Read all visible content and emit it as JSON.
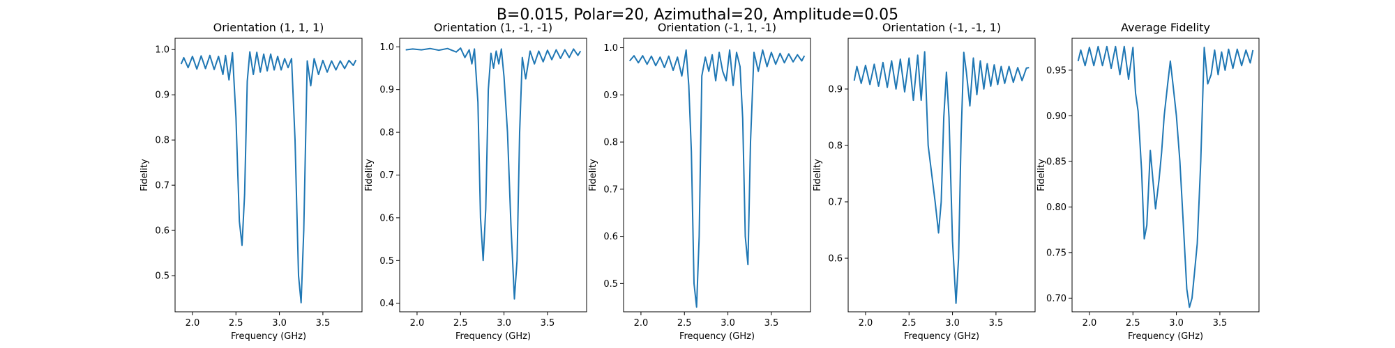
{
  "suptitle": "B=0.015, Polar=20, Azimuthal=20, Amplitude=0.05",
  "colors": {
    "line": "#1f77b4",
    "frame": "#000000",
    "background": "#ffffff"
  },
  "chart_data": [
    {
      "type": "line",
      "title": "Orientation (1, 1, 1)",
      "xlabel": "Frequency (GHz)",
      "ylabel": "Fidelity",
      "xlim": [
        1.8,
        3.95
      ],
      "ylim": [
        0.42,
        1.025
      ],
      "xticks": [
        "2.0",
        "2.5",
        "3.0",
        "3.5"
      ],
      "yticks": [
        "0.5",
        "0.6",
        "0.7",
        "0.8",
        "0.9",
        "1.0"
      ],
      "grid": false,
      "series": [
        {
          "x": [
            1.87,
            1.9,
            1.95,
            2.0,
            2.05,
            2.1,
            2.15,
            2.2,
            2.25,
            2.3,
            2.35,
            2.38,
            2.42,
            2.46,
            2.5,
            2.54,
            2.57,
            2.6,
            2.63,
            2.66,
            2.7,
            2.74,
            2.78,
            2.82,
            2.86,
            2.9,
            2.94,
            2.98,
            3.02,
            3.06,
            3.1,
            3.14,
            3.18,
            3.22,
            3.25,
            3.28,
            3.32,
            3.36,
            3.4,
            3.45,
            3.5,
            3.55,
            3.6,
            3.65,
            3.7,
            3.75,
            3.8,
            3.85,
            3.88
          ],
          "y": [
            0.968,
            0.982,
            0.96,
            0.985,
            0.957,
            0.986,
            0.958,
            0.987,
            0.956,
            0.985,
            0.945,
            0.987,
            0.933,
            0.993,
            0.85,
            0.62,
            0.567,
            0.68,
            0.93,
            0.995,
            0.945,
            0.994,
            0.95,
            0.99,
            0.953,
            0.99,
            0.955,
            0.985,
            0.955,
            0.98,
            0.96,
            0.98,
            0.8,
            0.5,
            0.44,
            0.6,
            0.975,
            0.92,
            0.98,
            0.945,
            0.976,
            0.95,
            0.975,
            0.955,
            0.975,
            0.958,
            0.976,
            0.965,
            0.977
          ]
        }
      ]
    },
    {
      "type": "line",
      "title": "Orientation (1, -1, -1)",
      "xlabel": "Frequency (GHz)",
      "ylabel": "Fidelity",
      "xlim": [
        1.8,
        3.95
      ],
      "ylim": [
        0.38,
        1.02
      ],
      "xticks": [
        "2.0",
        "2.5",
        "3.0",
        "3.5"
      ],
      "yticks": [
        "0.4",
        "0.5",
        "0.6",
        "0.7",
        "0.8",
        "0.9",
        "1.0"
      ],
      "grid": false,
      "series": [
        {
          "x": [
            1.87,
            1.95,
            2.05,
            2.15,
            2.25,
            2.35,
            2.45,
            2.5,
            2.55,
            2.6,
            2.63,
            2.66,
            2.7,
            2.73,
            2.76,
            2.79,
            2.82,
            2.85,
            2.88,
            2.91,
            2.94,
            2.97,
            3.0,
            3.04,
            3.08,
            3.12,
            3.15,
            3.18,
            3.21,
            3.25,
            3.3,
            3.35,
            3.4,
            3.45,
            3.5,
            3.55,
            3.6,
            3.65,
            3.7,
            3.75,
            3.8,
            3.85,
            3.88
          ],
          "y": [
            0.993,
            0.995,
            0.993,
            0.996,
            0.992,
            0.996,
            0.988,
            0.997,
            0.975,
            0.993,
            0.96,
            0.995,
            0.87,
            0.6,
            0.5,
            0.62,
            0.9,
            0.985,
            0.95,
            0.99,
            0.96,
            0.995,
            0.93,
            0.8,
            0.58,
            0.41,
            0.5,
            0.8,
            0.975,
            0.925,
            0.99,
            0.96,
            0.99,
            0.965,
            0.992,
            0.97,
            0.993,
            0.973,
            0.993,
            0.975,
            0.995,
            0.98,
            0.99
          ]
        }
      ]
    },
    {
      "type": "line",
      "title": "Orientation (-1, 1, -1)",
      "xlabel": "Frequency (GHz)",
      "ylabel": "Fidelity",
      "xlim": [
        1.8,
        3.95
      ],
      "ylim": [
        0.44,
        1.02
      ],
      "xticks": [
        "2.0",
        "2.5",
        "3.0",
        "3.5"
      ],
      "yticks": [
        "0.5",
        "0.6",
        "0.7",
        "0.8",
        "0.9",
        "1.0"
      ],
      "grid": false,
      "series": [
        {
          "x": [
            1.87,
            1.92,
            1.97,
            2.02,
            2.07,
            2.12,
            2.17,
            2.22,
            2.27,
            2.32,
            2.37,
            2.42,
            2.47,
            2.52,
            2.55,
            2.58,
            2.61,
            2.64,
            2.67,
            2.7,
            2.74,
            2.78,
            2.82,
            2.86,
            2.9,
            2.94,
            2.98,
            3.02,
            3.06,
            3.1,
            3.14,
            3.17,
            3.2,
            3.23,
            3.26,
            3.3,
            3.35,
            3.4,
            3.45,
            3.5,
            3.55,
            3.6,
            3.65,
            3.7,
            3.75,
            3.8,
            3.85,
            3.88
          ],
          "y": [
            0.972,
            0.983,
            0.968,
            0.983,
            0.965,
            0.982,
            0.962,
            0.98,
            0.958,
            0.982,
            0.952,
            0.98,
            0.94,
            0.995,
            0.92,
            0.78,
            0.5,
            0.45,
            0.6,
            0.94,
            0.98,
            0.95,
            0.985,
            0.93,
            0.99,
            0.95,
            0.93,
            0.995,
            0.92,
            0.99,
            0.96,
            0.85,
            0.6,
            0.54,
            0.8,
            0.99,
            0.95,
            0.995,
            0.96,
            0.99,
            0.965,
            0.988,
            0.968,
            0.987,
            0.97,
            0.985,
            0.972,
            0.983
          ]
        }
      ]
    },
    {
      "type": "line",
      "title": "Orientation (-1, -1, 1)",
      "xlabel": "Frequency (GHz)",
      "ylabel": "Fidelity",
      "xlim": [
        1.8,
        3.95
      ],
      "ylim": [
        0.505,
        0.99
      ],
      "xticks": [
        "2.0",
        "2.5",
        "3.0",
        "3.5"
      ],
      "yticks": [
        "0.6",
        "0.7",
        "0.8",
        "0.9"
      ],
      "grid": false,
      "series": [
        {
          "x": [
            1.87,
            1.9,
            1.95,
            2.0,
            2.05,
            2.1,
            2.15,
            2.2,
            2.25,
            2.3,
            2.35,
            2.4,
            2.45,
            2.5,
            2.55,
            2.6,
            2.64,
            2.68,
            2.72,
            2.76,
            2.8,
            2.84,
            2.87,
            2.9,
            2.93,
            2.96,
            3.0,
            3.04,
            3.07,
            3.1,
            3.13,
            3.16,
            3.2,
            3.24,
            3.28,
            3.32,
            3.36,
            3.4,
            3.44,
            3.48,
            3.52,
            3.56,
            3.6,
            3.65,
            3.7,
            3.75,
            3.8,
            3.85,
            3.88
          ],
          "y": [
            0.915,
            0.94,
            0.91,
            0.942,
            0.908,
            0.944,
            0.905,
            0.947,
            0.903,
            0.95,
            0.9,
            0.953,
            0.895,
            0.955,
            0.88,
            0.96,
            0.88,
            0.966,
            0.8,
            0.75,
            0.7,
            0.645,
            0.7,
            0.85,
            0.93,
            0.85,
            0.63,
            0.52,
            0.6,
            0.82,
            0.965,
            0.93,
            0.87,
            0.955,
            0.89,
            0.95,
            0.9,
            0.945,
            0.905,
            0.943,
            0.908,
            0.94,
            0.91,
            0.94,
            0.912,
            0.938,
            0.915,
            0.937,
            0.938
          ]
        }
      ]
    },
    {
      "type": "line",
      "title": "Average Fidelity",
      "xlabel": "Frequency (GHz)",
      "ylabel": "Fidelity",
      "xlim": [
        1.8,
        3.95
      ],
      "ylim": [
        0.685,
        0.985
      ],
      "xticks": [
        "2.0",
        "2.5",
        "3.0",
        "3.5"
      ],
      "yticks": [
        "0.70",
        "0.75",
        "0.80",
        "0.85",
        "0.90",
        "0.95"
      ],
      "grid": false,
      "series": [
        {
          "x": [
            1.87,
            1.9,
            1.95,
            2.0,
            2.05,
            2.1,
            2.15,
            2.2,
            2.25,
            2.3,
            2.35,
            2.4,
            2.45,
            2.5,
            2.53,
            2.56,
            2.6,
            2.63,
            2.66,
            2.7,
            2.73,
            2.76,
            2.8,
            2.83,
            2.86,
            2.9,
            2.93,
            2.96,
            3.0,
            3.04,
            3.08,
            3.12,
            3.15,
            3.18,
            3.21,
            3.24,
            3.28,
            3.32,
            3.36,
            3.4,
            3.44,
            3.48,
            3.52,
            3.56,
            3.6,
            3.65,
            3.7,
            3.75,
            3.8,
            3.85,
            3.88
          ],
          "y": [
            0.96,
            0.972,
            0.955,
            0.975,
            0.955,
            0.976,
            0.955,
            0.976,
            0.952,
            0.976,
            0.945,
            0.976,
            0.94,
            0.975,
            0.925,
            0.905,
            0.84,
            0.765,
            0.78,
            0.862,
            0.83,
            0.798,
            0.83,
            0.86,
            0.9,
            0.935,
            0.96,
            0.935,
            0.9,
            0.85,
            0.78,
            0.71,
            0.69,
            0.7,
            0.73,
            0.76,
            0.85,
            0.975,
            0.935,
            0.945,
            0.972,
            0.945,
            0.97,
            0.95,
            0.973,
            0.952,
            0.973,
            0.955,
            0.972,
            0.958,
            0.972
          ]
        }
      ]
    }
  ]
}
